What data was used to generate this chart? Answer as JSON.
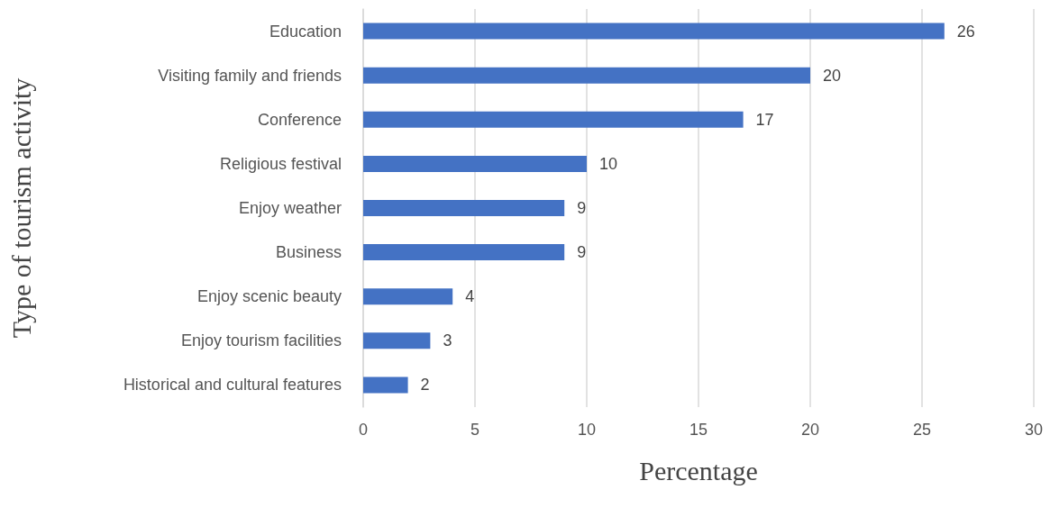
{
  "chart_data": {
    "type": "bar",
    "orientation": "horizontal",
    "xlabel": "Percentage",
    "ylabel": "Type of tourism activity",
    "categories": [
      "Education",
      "Visiting family and friends",
      "Conference",
      "Religious festival",
      "Enjoy weather",
      "Business",
      "Enjoy scenic beauty",
      "Enjoy tourism facilities",
      "Historical and cultural features"
    ],
    "values": [
      26,
      20,
      17,
      10,
      9,
      9,
      4,
      3,
      2
    ],
    "color": "#4472c4",
    "xlim": [
      0,
      30
    ],
    "xticks": [
      0,
      5,
      10,
      15,
      20,
      25,
      30
    ],
    "grid": "x",
    "data_labels": true
  }
}
